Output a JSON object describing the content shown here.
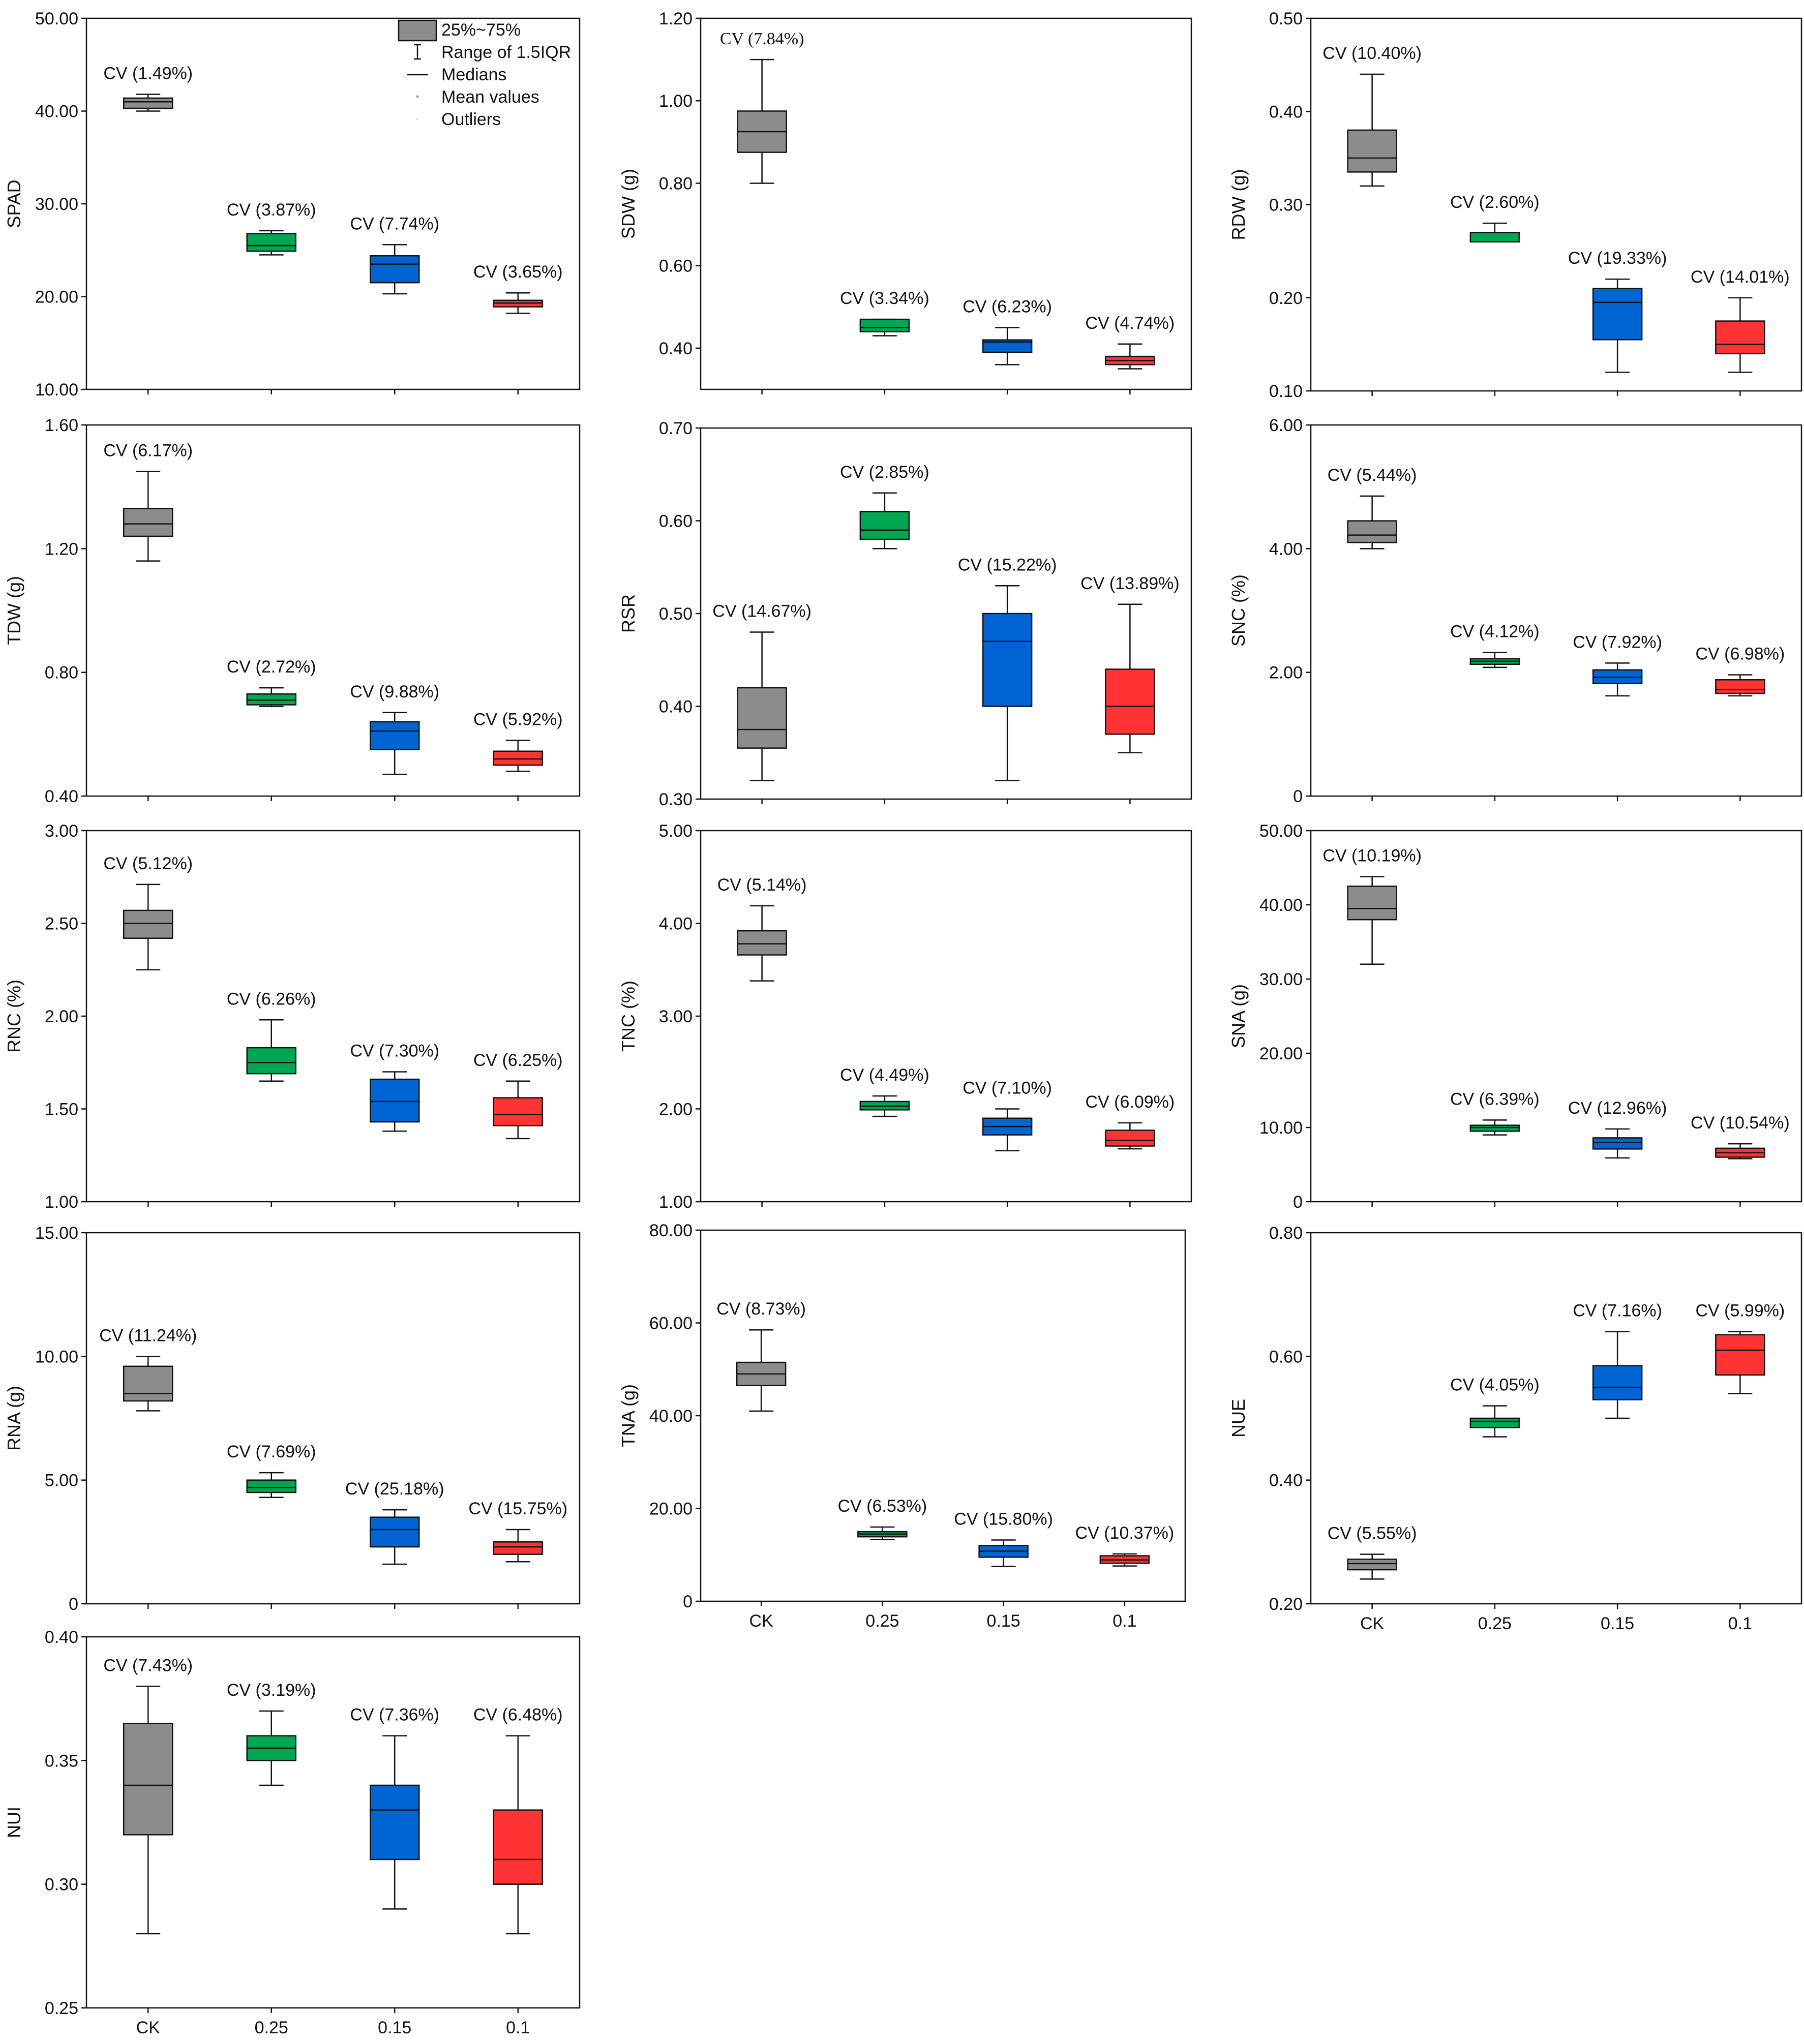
{
  "colors": {
    "CK": "#8c8c8c",
    "0.25": "#00a651",
    "0.15": "#0064d2",
    "0.1": "#ff3333",
    "frame": "#111111"
  },
  "legend": {
    "box_label": "25%~75%",
    "range_label": "Range of 1.5IQR",
    "median_label": "Medians",
    "mean_label": "Mean values",
    "outlier_label": "Outliers"
  },
  "chart_data": [
    {
      "type": "box",
      "ylabel": "SPAD",
      "ylim": [
        10,
        50
      ],
      "yticks": [
        "10.00",
        "20.00",
        "30.00",
        "40.00",
        "50.00"
      ],
      "categories": [
        "CK",
        "0.25",
        "0.15",
        "0.1"
      ],
      "show_xlabels": false,
      "boxes": [
        {
          "min": 40.0,
          "q1": 40.3,
          "median": 41.0,
          "q3": 41.4,
          "max": 41.8,
          "cv": "CV (1.49%)"
        },
        {
          "min": 24.5,
          "q1": 24.9,
          "median": 25.5,
          "q3": 26.8,
          "max": 27.1,
          "cv": "CV (3.87%)"
        },
        {
          "min": 20.3,
          "q1": 21.5,
          "median": 23.5,
          "q3": 24.4,
          "max": 25.6,
          "cv": "CV (7.74%)"
        },
        {
          "min": 18.2,
          "q1": 18.9,
          "median": 19.3,
          "q3": 19.6,
          "max": 20.4,
          "cv": "CV (3.65%)"
        }
      ]
    },
    {
      "type": "box",
      "ylabel": "SDW (g)",
      "ylim": [
        0.3,
        1.2
      ],
      "yticks": [
        "0.40",
        "0.60",
        "0.80",
        "1.00",
        "1.20"
      ],
      "categories": [
        "CK",
        "0.25",
        "0.15",
        "0.1"
      ],
      "show_xlabels": false,
      "boxes": [
        {
          "min": 0.8,
          "q1": 0.875,
          "median": 0.925,
          "q3": 0.975,
          "max": 1.1,
          "cv": "CV (7.84%)",
          "serif": true
        },
        {
          "min": 0.43,
          "q1": 0.44,
          "median": 0.45,
          "q3": 0.47,
          "max": 0.47,
          "cv": "CV (3.34%)"
        },
        {
          "min": 0.36,
          "q1": 0.39,
          "median": 0.415,
          "q3": 0.42,
          "max": 0.45,
          "cv": "CV (6.23%)"
        },
        {
          "min": 0.35,
          "q1": 0.36,
          "median": 0.37,
          "q3": 0.38,
          "max": 0.41,
          "cv": "CV (4.74%)"
        }
      ]
    },
    {
      "type": "box",
      "ylabel": "RDW (g)",
      "ylim": [
        0.1,
        0.5
      ],
      "yticks": [
        "0.10",
        "0.20",
        "0.30",
        "0.40",
        "0.50"
      ],
      "categories": [
        "CK",
        "0.25",
        "0.15",
        "0.1"
      ],
      "show_xlabels": false,
      "boxes": [
        {
          "min": 0.32,
          "q1": 0.335,
          "median": 0.35,
          "q3": 0.38,
          "max": 0.44,
          "cv": "CV (10.40%)"
        },
        {
          "min": 0.26,
          "q1": 0.26,
          "median": 0.27,
          "q3": 0.27,
          "max": 0.28,
          "cv": "CV (2.60%)"
        },
        {
          "min": 0.12,
          "q1": 0.155,
          "median": 0.195,
          "q3": 0.21,
          "max": 0.22,
          "cv": "CV (19.33%)"
        },
        {
          "min": 0.12,
          "q1": 0.14,
          "median": 0.15,
          "q3": 0.175,
          "max": 0.2,
          "cv": "CV (14.01%)"
        }
      ]
    },
    {
      "type": "box",
      "ylabel": "TDW (g)",
      "ylim": [
        0.4,
        1.6
      ],
      "yticks": [
        "0.40",
        "0.80",
        "1.20",
        "1.60"
      ],
      "categories": [
        "CK",
        "0.25",
        "0.15",
        "0.1"
      ],
      "show_xlabels": false,
      "boxes": [
        {
          "min": 1.16,
          "q1": 1.24,
          "median": 1.28,
          "q3": 1.33,
          "max": 1.45,
          "cv": "CV (6.17%)"
        },
        {
          "min": 0.69,
          "q1": 0.695,
          "median": 0.71,
          "q3": 0.73,
          "max": 0.75,
          "cv": "CV (2.72%)"
        },
        {
          "min": 0.47,
          "q1": 0.55,
          "median": 0.61,
          "q3": 0.64,
          "max": 0.67,
          "cv": "CV (9.88%)"
        },
        {
          "min": 0.48,
          "q1": 0.5,
          "median": 0.52,
          "q3": 0.545,
          "max": 0.58,
          "cv": "CV (5.92%)"
        }
      ]
    },
    {
      "type": "box",
      "ylabel": "RSR",
      "ylim": [
        0.3,
        0.7
      ],
      "yticks": [
        "0.30",
        "0.40",
        "0.50",
        "0.60",
        "0.70"
      ],
      "categories": [
        "CK",
        "0.25",
        "0.15",
        "0.1"
      ],
      "show_xlabels": false,
      "boxes": [
        {
          "min": 0.32,
          "q1": 0.355,
          "median": 0.375,
          "q3": 0.42,
          "max": 0.48,
          "cv": "CV (14.67%)"
        },
        {
          "min": 0.57,
          "q1": 0.58,
          "median": 0.59,
          "q3": 0.61,
          "max": 0.63,
          "cv": "CV (2.85%)"
        },
        {
          "min": 0.32,
          "q1": 0.4,
          "median": 0.47,
          "q3": 0.5,
          "max": 0.53,
          "cv": "CV (15.22%)"
        },
        {
          "min": 0.35,
          "q1": 0.37,
          "median": 0.4,
          "q3": 0.44,
          "max": 0.51,
          "cv": "CV (13.89%)"
        }
      ]
    },
    {
      "type": "box",
      "ylabel": "SNC (%)",
      "ylim": [
        0,
        6
      ],
      "yticks": [
        "0",
        "2.00",
        "4.00",
        "6.00"
      ],
      "categories": [
        "CK",
        "0.25",
        "0.15",
        "0.1"
      ],
      "show_xlabels": false,
      "boxes": [
        {
          "min": 4.0,
          "q1": 4.1,
          "median": 4.22,
          "q3": 4.45,
          "max": 4.85,
          "cv": "CV (5.44%)"
        },
        {
          "min": 2.08,
          "q1": 2.13,
          "median": 2.18,
          "q3": 2.22,
          "max": 2.32,
          "cv": "CV (4.12%)"
        },
        {
          "min": 1.62,
          "q1": 1.82,
          "median": 1.92,
          "q3": 2.04,
          "max": 2.15,
          "cv": "CV (7.92%)"
        },
        {
          "min": 1.62,
          "q1": 1.66,
          "median": 1.72,
          "q3": 1.88,
          "max": 1.96,
          "cv": "CV (6.98%)"
        }
      ]
    },
    {
      "type": "box",
      "ylabel": "RNC (%)",
      "ylim": [
        1,
        3
      ],
      "yticks": [
        "1.00",
        "1.50",
        "2.00",
        "2.50",
        "3.00"
      ],
      "categories": [
        "CK",
        "0.25",
        "0.15",
        "0.1"
      ],
      "show_xlabels": false,
      "boxes": [
        {
          "min": 2.25,
          "q1": 2.42,
          "median": 2.5,
          "q3": 2.57,
          "max": 2.71,
          "cv": "CV (5.12%)"
        },
        {
          "min": 1.65,
          "q1": 1.69,
          "median": 1.75,
          "q3": 1.83,
          "max": 1.98,
          "cv": "CV (6.26%)"
        },
        {
          "min": 1.38,
          "q1": 1.43,
          "median": 1.54,
          "q3": 1.66,
          "max": 1.7,
          "cv": "CV (7.30%)"
        },
        {
          "min": 1.34,
          "q1": 1.41,
          "median": 1.47,
          "q3": 1.56,
          "max": 1.65,
          "cv": "CV (6.25%)"
        }
      ]
    },
    {
      "type": "box",
      "ylabel": "TNC (%)",
      "ylim": [
        1,
        5
      ],
      "yticks": [
        "1.00",
        "2.00",
        "3.00",
        "4.00",
        "5.00"
      ],
      "categories": [
        "CK",
        "0.25",
        "0.15",
        "0.1"
      ],
      "show_xlabels": false,
      "boxes": [
        {
          "min": 3.38,
          "q1": 3.66,
          "median": 3.78,
          "q3": 3.92,
          "max": 4.19,
          "cv": "CV (5.14%)"
        },
        {
          "min": 1.92,
          "q1": 1.99,
          "median": 2.03,
          "q3": 2.08,
          "max": 2.14,
          "cv": "CV (4.49%)"
        },
        {
          "min": 1.55,
          "q1": 1.72,
          "median": 1.81,
          "q3": 1.9,
          "max": 2.0,
          "cv": "CV (7.10%)"
        },
        {
          "min": 1.57,
          "q1": 1.6,
          "median": 1.66,
          "q3": 1.77,
          "max": 1.85,
          "cv": "CV (6.09%)"
        }
      ]
    },
    {
      "type": "box",
      "ylabel": "SNA (g)",
      "ylim": [
        0,
        50
      ],
      "yticks": [
        "0",
        "10.00",
        "20.00",
        "30.00",
        "40.00",
        "50.00"
      ],
      "categories": [
        "CK",
        "0.25",
        "0.15",
        "0.1"
      ],
      "show_xlabels": false,
      "boxes": [
        {
          "min": 32.0,
          "q1": 38.0,
          "median": 39.5,
          "q3": 42.5,
          "max": 43.8,
          "cv": "CV (10.19%)"
        },
        {
          "min": 9.0,
          "q1": 9.5,
          "median": 10.0,
          "q3": 10.3,
          "max": 11.0,
          "cv": "CV (6.39%)"
        },
        {
          "min": 5.9,
          "q1": 7.1,
          "median": 8.0,
          "q3": 8.6,
          "max": 9.8,
          "cv": "CV (12.96%)"
        },
        {
          "min": 5.8,
          "q1": 6.0,
          "median": 6.6,
          "q3": 7.2,
          "max": 7.8,
          "cv": "CV (10.54%)"
        }
      ]
    },
    {
      "type": "box",
      "ylabel": "RNA (g)",
      "ylim": [
        0,
        15
      ],
      "yticks": [
        "0",
        "5.00",
        "10.00",
        "15.00"
      ],
      "categories": [
        "CK",
        "0.25",
        "0.15",
        "0.1"
      ],
      "show_xlabels": false,
      "boxes": [
        {
          "min": 7.8,
          "q1": 8.2,
          "median": 8.5,
          "q3": 9.6,
          "max": 10.0,
          "cv": "CV (11.24%)"
        },
        {
          "min": 4.3,
          "q1": 4.5,
          "median": 4.7,
          "q3": 5.0,
          "max": 5.3,
          "cv": "CV (7.69%)"
        },
        {
          "min": 1.6,
          "q1": 2.3,
          "median": 3.0,
          "q3": 3.5,
          "max": 3.8,
          "cv": "CV (25.18%)"
        },
        {
          "min": 1.7,
          "q1": 2.0,
          "median": 2.3,
          "q3": 2.5,
          "max": 3.0,
          "cv": "CV (15.75%)"
        }
      ]
    },
    {
      "type": "box",
      "ylabel": "TNA (g)",
      "ylim": [
        0,
        80
      ],
      "yticks": [
        "0",
        "20.00",
        "40.00",
        "60.00",
        "80.00"
      ],
      "categories": [
        "CK",
        "0.25",
        "0.15",
        "0.1"
      ],
      "show_xlabels": true,
      "boxes": [
        {
          "min": 41.0,
          "q1": 46.5,
          "median": 49.0,
          "q3": 51.5,
          "max": 58.5,
          "cv": "CV (8.73%)"
        },
        {
          "min": 13.3,
          "q1": 13.9,
          "median": 14.5,
          "q3": 15.0,
          "max": 16.0,
          "cv": "CV (6.53%)"
        },
        {
          "min": 7.5,
          "q1": 9.5,
          "median": 10.8,
          "q3": 12.0,
          "max": 13.2,
          "cv": "CV (15.80%)"
        },
        {
          "min": 7.6,
          "q1": 8.2,
          "median": 8.9,
          "q3": 9.8,
          "max": 10.2,
          "cv": "CV (10.37%)"
        }
      ]
    },
    {
      "type": "box",
      "ylabel": "NUE",
      "ylim": [
        0.2,
        0.8
      ],
      "yticks": [
        "0.20",
        "0.40",
        "0.60",
        "0.80"
      ],
      "categories": [
        "CK",
        "0.25",
        "0.15",
        "0.1"
      ],
      "show_xlabels": true,
      "boxes": [
        {
          "min": 0.24,
          "q1": 0.255,
          "median": 0.265,
          "q3": 0.272,
          "max": 0.28,
          "cv": "CV (5.55%)"
        },
        {
          "min": 0.47,
          "q1": 0.485,
          "median": 0.495,
          "q3": 0.5,
          "max": 0.52,
          "cv": "CV (4.05%)"
        },
        {
          "min": 0.5,
          "q1": 0.53,
          "median": 0.55,
          "q3": 0.585,
          "max": 0.64,
          "cv": "CV (7.16%)"
        },
        {
          "min": 0.54,
          "q1": 0.57,
          "median": 0.61,
          "q3": 0.635,
          "max": 0.64,
          "cv": "CV (5.99%)"
        }
      ]
    },
    {
      "type": "box",
      "ylabel": "NUI",
      "ylim": [
        0.25,
        0.4
      ],
      "yticks": [
        "0.25",
        "0.30",
        "0.35",
        "0.40"
      ],
      "categories": [
        "CK",
        "0.25",
        "0.15",
        "0.1"
      ],
      "show_xlabels": true,
      "boxes": [
        {
          "min": 0.28,
          "q1": 0.32,
          "median": 0.34,
          "q3": 0.365,
          "max": 0.38,
          "cv": "CV (7.43%)"
        },
        {
          "min": 0.34,
          "q1": 0.35,
          "median": 0.355,
          "q3": 0.36,
          "max": 0.37,
          "cv": "CV (3.19%)"
        },
        {
          "min": 0.29,
          "q1": 0.31,
          "median": 0.33,
          "q3": 0.34,
          "max": 0.36,
          "cv": "CV (7.36%)"
        },
        {
          "min": 0.28,
          "q1": 0.3,
          "median": 0.31,
          "q3": 0.33,
          "max": 0.36,
          "cv": "CV (6.48%)"
        }
      ]
    }
  ]
}
